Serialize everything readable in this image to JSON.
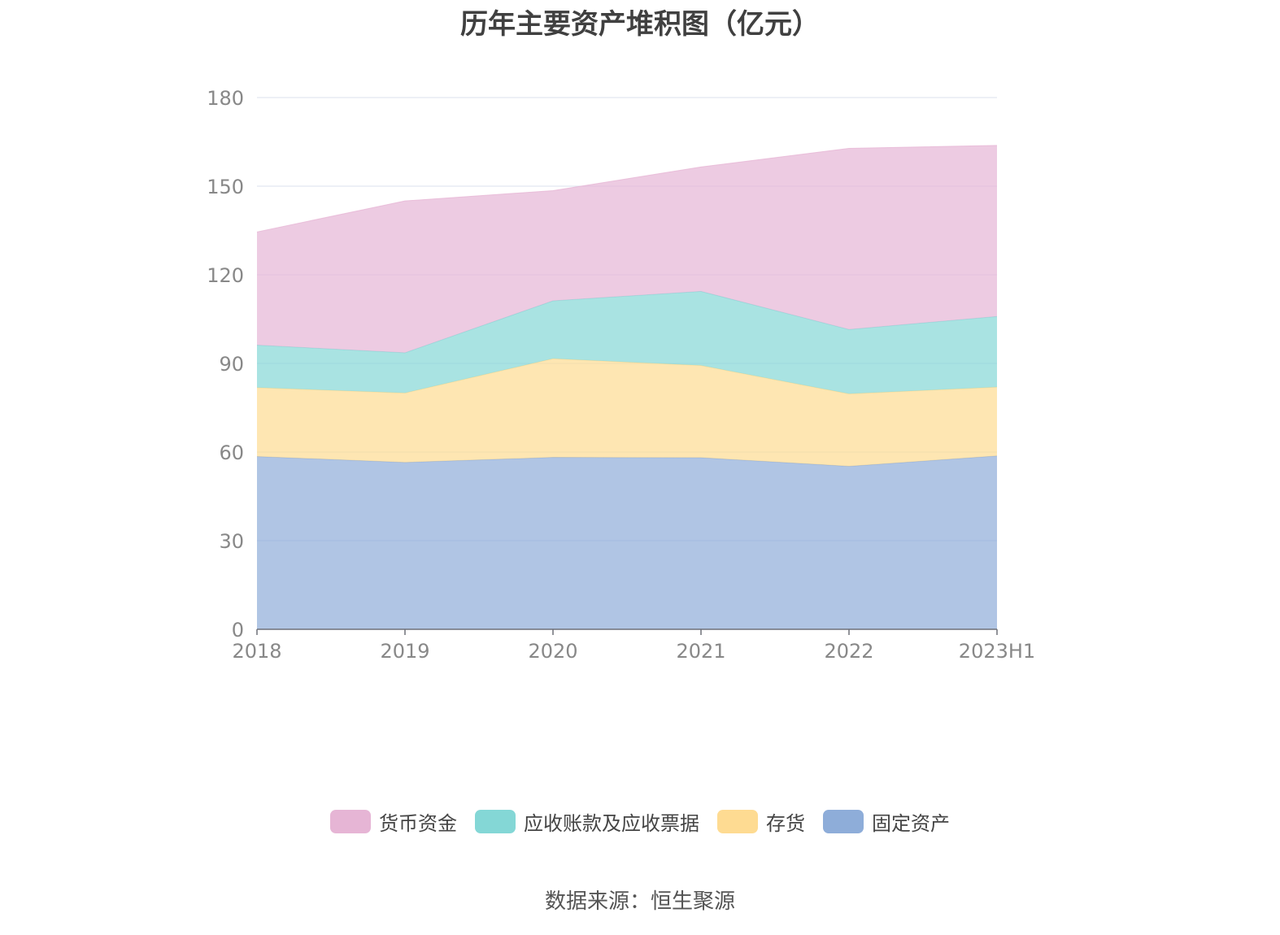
{
  "title": "历年主要资产堆积图（亿元）",
  "source": "数据来源：恒生聚源",
  "colors": {
    "grid": "#dbe1ee",
    "axis": "#6e7079",
    "tick_text": "#888888"
  },
  "chart_data": {
    "type": "area",
    "stacked": true,
    "categories": [
      "2018",
      "2019",
      "2020",
      "2021",
      "2022",
      "2023H1"
    ],
    "ylim": [
      0,
      180
    ],
    "yticks": [
      0,
      30,
      60,
      90,
      120,
      150,
      180
    ],
    "grid": true,
    "legend_position": "bottom",
    "series": [
      {
        "name": "固定资产",
        "color": "#8eadd9",
        "values": [
          58.5,
          56.5,
          58.2,
          58.1,
          55.2,
          58.7
        ]
      },
      {
        "name": "存货",
        "color": "#fedb92",
        "values": [
          23.3,
          23.5,
          33.4,
          31.2,
          24.5,
          23.3
        ]
      },
      {
        "name": "应收账款及应收票据",
        "color": "#84d7d6",
        "values": [
          14.4,
          13.6,
          19.6,
          25.1,
          21.8,
          23.9
        ]
      },
      {
        "name": "货币资金",
        "color": "#e6b5d5",
        "values": [
          38.3,
          51.4,
          37.3,
          42.1,
          61.3,
          57.9
        ]
      }
    ]
  },
  "legend": [
    {
      "label": "货币资金",
      "color": "#e6b5d5"
    },
    {
      "label": "应收账款及应收票据",
      "color": "#84d7d6"
    },
    {
      "label": "存货",
      "color": "#fedb92"
    },
    {
      "label": "固定资产",
      "color": "#8eadd9"
    }
  ]
}
